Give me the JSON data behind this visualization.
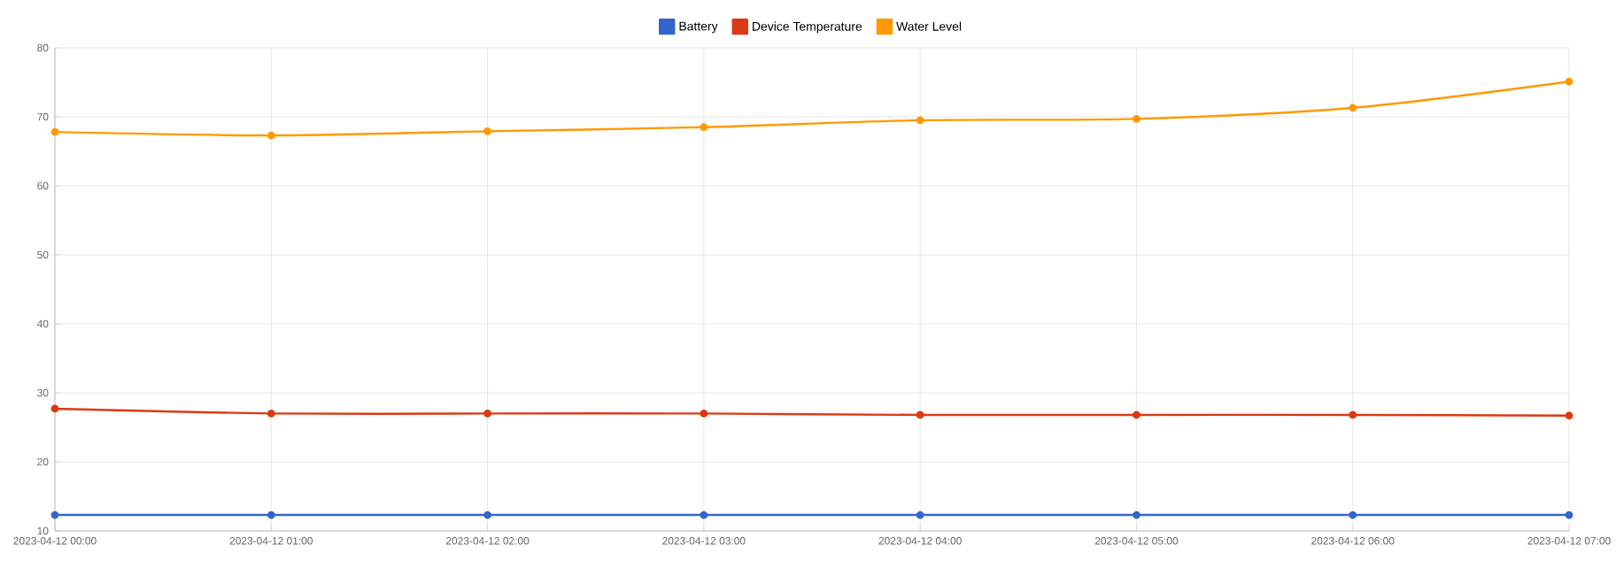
{
  "chart_data": {
    "type": "line",
    "categories": [
      "2023-04-12 00:00",
      "2023-04-12 01:00",
      "2023-04-12 02:00",
      "2023-04-12 03:00",
      "2023-04-12 04:00",
      "2023-04-12 05:00",
      "2023-04-12 06:00",
      "2023-04-12 07:00"
    ],
    "series": [
      {
        "name": "Battery",
        "color": "#3366cc",
        "values": [
          12.3,
          12.3,
          12.3,
          12.3,
          12.3,
          12.3,
          12.3,
          12.3
        ]
      },
      {
        "name": "Device Temperature",
        "color": "#dc3912",
        "values": [
          27.7,
          27.0,
          27.0,
          27.0,
          26.8,
          26.8,
          26.8,
          26.7
        ]
      },
      {
        "name": "Water Level",
        "color": "#ff9900",
        "values": [
          67.8,
          67.3,
          67.9,
          68.5,
          69.5,
          69.7,
          71.3,
          75.1
        ]
      }
    ],
    "ylim": [
      10,
      80
    ],
    "yticks": [
      10,
      20,
      30,
      40,
      50,
      60,
      70,
      80
    ],
    "grid": true,
    "legend": "top",
    "marker": "circle",
    "line_style": "solid"
  }
}
